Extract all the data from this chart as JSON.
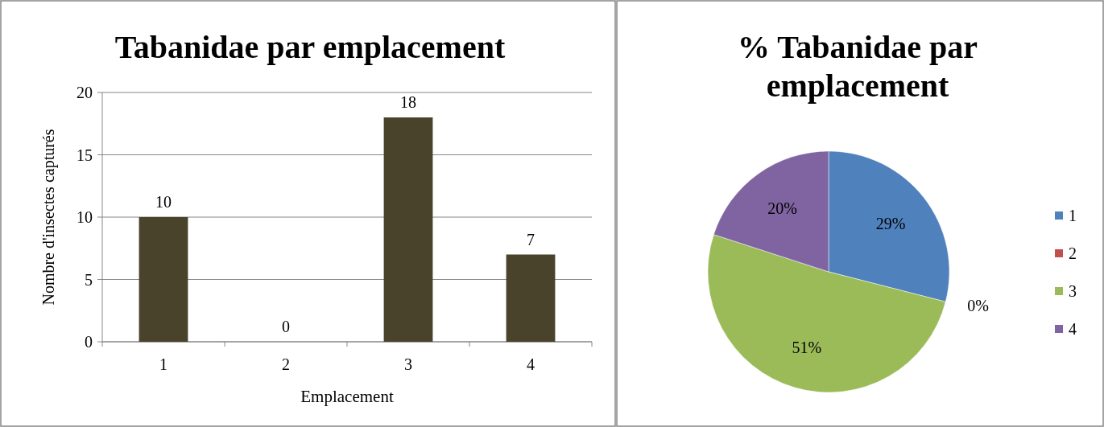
{
  "chart_data": [
    {
      "type": "bar",
      "title": "Tabanidae par emplacement",
      "xlabel": "Emplacement",
      "ylabel": "Nombre d'insectes capturés",
      "categories": [
        "1",
        "2",
        "3",
        "4"
      ],
      "values": [
        10,
        0,
        18,
        7
      ],
      "color": "#4a432c",
      "ylim": [
        0,
        20
      ],
      "yticks": [
        0,
        5,
        10,
        15,
        20
      ],
      "grid": "y",
      "data_labels": true
    },
    {
      "type": "pie",
      "title": "% Tabanidae par emplacement",
      "categories": [
        "1",
        "2",
        "3",
        "4"
      ],
      "values": [
        29,
        0,
        51,
        20
      ],
      "value_labels": [
        "29%",
        "0%",
        "51%",
        "20%"
      ],
      "colors": [
        "#4f81bd",
        "#c0504d",
        "#9bbb59",
        "#8064a2"
      ],
      "legend": "right"
    }
  ]
}
